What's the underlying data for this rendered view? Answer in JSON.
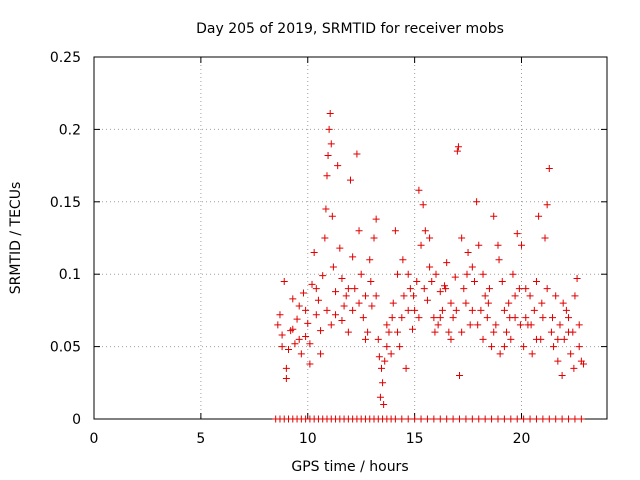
{
  "chart_data": {
    "type": "scatter",
    "title": "Day 205 of 2019, SRMTID for receiver mobs",
    "xlabel": "GPS time / hours",
    "ylabel": "SRMTID / TECUs",
    "xlim": [
      0,
      24
    ],
    "ylim": [
      0,
      0.25
    ],
    "xticks": [
      0,
      5,
      10,
      15,
      20
    ],
    "xtick_labels": [
      "0",
      "5",
      "10",
      "15",
      "20"
    ],
    "yticks": [
      0,
      0.05,
      0.1,
      0.15,
      0.2,
      0.25
    ],
    "ytick_labels": [
      "0",
      "0.05",
      "0.1",
      "0.15",
      "0.2",
      "0.25"
    ],
    "grid": true,
    "marker": "+",
    "color": "#e00000",
    "series": [
      {
        "name": "SRMTID",
        "points": [
          [
            8.6,
            0.065
          ],
          [
            8.7,
            0.072
          ],
          [
            8.8,
            0.058
          ],
          [
            8.9,
            0.095
          ],
          [
            9.0,
            0.028
          ],
          [
            9.1,
            0.048
          ],
          [
            9.2,
            0.061
          ],
          [
            9.3,
            0.083
          ],
          [
            9.4,
            0.052
          ],
          [
            9.5,
            0.069
          ],
          [
            9.6,
            0.078
          ],
          [
            9.7,
            0.045
          ],
          [
            9.8,
            0.087
          ],
          [
            9.9,
            0.057
          ],
          [
            10.0,
            0.066
          ],
          [
            10.1,
            0.038
          ],
          [
            10.2,
            0.093
          ],
          [
            10.3,
            0.115
          ],
          [
            10.4,
            0.072
          ],
          [
            10.5,
            0.082
          ],
          [
            10.6,
            0.061
          ],
          [
            10.7,
            0.099
          ],
          [
            10.8,
            0.125
          ],
          [
            10.85,
            0.145
          ],
          [
            10.9,
            0.168
          ],
          [
            10.95,
            0.182
          ],
          [
            11.0,
            0.2
          ],
          [
            11.05,
            0.211
          ],
          [
            11.1,
            0.19
          ],
          [
            11.15,
            0.14
          ],
          [
            11.2,
            0.105
          ],
          [
            11.3,
            0.088
          ],
          [
            11.4,
            0.175
          ],
          [
            11.5,
            0.118
          ],
          [
            11.6,
            0.097
          ],
          [
            11.7,
            0.078
          ],
          [
            11.8,
            0.085
          ],
          [
            11.9,
            0.06
          ],
          [
            12.0,
            0.165
          ],
          [
            12.1,
            0.112
          ],
          [
            12.2,
            0.09
          ],
          [
            12.3,
            0.183
          ],
          [
            12.4,
            0.13
          ],
          [
            12.5,
            0.1
          ],
          [
            12.6,
            0.07
          ],
          [
            12.7,
            0.085
          ],
          [
            12.8,
            0.06
          ],
          [
            12.9,
            0.11
          ],
          [
            13.0,
            0.078
          ],
          [
            13.1,
            0.125
          ],
          [
            13.2,
            0.138
          ],
          [
            13.3,
            0.055
          ],
          [
            13.35,
            0.043
          ],
          [
            13.4,
            0.015
          ],
          [
            13.5,
            0.025
          ],
          [
            13.55,
            0.01
          ],
          [
            13.6,
            0.04
          ],
          [
            13.7,
            0.065
          ],
          [
            13.8,
            0.06
          ],
          [
            13.9,
            0.045
          ],
          [
            14.0,
            0.08
          ],
          [
            14.1,
            0.13
          ],
          [
            14.2,
            0.1
          ],
          [
            14.3,
            0.05
          ],
          [
            14.4,
            0.07
          ],
          [
            14.5,
            0.085
          ],
          [
            14.6,
            0.035
          ],
          [
            14.7,
            0.1
          ],
          [
            14.8,
            0.09
          ],
          [
            14.9,
            0.062
          ],
          [
            15.0,
            0.075
          ],
          [
            15.1,
            0.095
          ],
          [
            15.2,
            0.158
          ],
          [
            15.3,
            0.12
          ],
          [
            15.4,
            0.148
          ],
          [
            15.5,
            0.13
          ],
          [
            15.6,
            0.082
          ],
          [
            15.7,
            0.125
          ],
          [
            15.8,
            0.095
          ],
          [
            15.9,
            0.07
          ],
          [
            16.0,
            0.1
          ],
          [
            16.1,
            0.065
          ],
          [
            16.2,
            0.088
          ],
          [
            16.3,
            0.075
          ],
          [
            16.4,
            0.092
          ],
          [
            16.5,
            0.108
          ],
          [
            16.6,
            0.06
          ],
          [
            16.7,
            0.08
          ],
          [
            16.8,
            0.07
          ],
          [
            16.9,
            0.098
          ],
          [
            17.0,
            0.185
          ],
          [
            17.05,
            0.188
          ],
          [
            17.1,
            0.03
          ],
          [
            17.2,
            0.125
          ],
          [
            17.3,
            0.09
          ],
          [
            17.4,
            0.08
          ],
          [
            17.5,
            0.115
          ],
          [
            17.6,
            0.065
          ],
          [
            17.7,
            0.105
          ],
          [
            17.8,
            0.095
          ],
          [
            17.9,
            0.15
          ],
          [
            18.0,
            0.12
          ],
          [
            18.1,
            0.075
          ],
          [
            18.2,
            0.055
          ],
          [
            18.3,
            0.085
          ],
          [
            18.4,
            0.07
          ],
          [
            18.5,
            0.09
          ],
          [
            18.6,
            0.05
          ],
          [
            18.7,
            0.14
          ],
          [
            18.8,
            0.065
          ],
          [
            18.9,
            0.12
          ],
          [
            19.0,
            0.045
          ],
          [
            19.1,
            0.095
          ],
          [
            19.2,
            0.075
          ],
          [
            19.3,
            0.06
          ],
          [
            19.4,
            0.08
          ],
          [
            19.5,
            0.055
          ],
          [
            19.6,
            0.1
          ],
          [
            19.7,
            0.07
          ],
          [
            19.8,
            0.128
          ],
          [
            19.9,
            0.09
          ],
          [
            20.0,
            0.12
          ],
          [
            20.1,
            0.05
          ],
          [
            20.2,
            0.07
          ],
          [
            20.3,
            0.065
          ],
          [
            20.4,
            0.085
          ],
          [
            20.5,
            0.045
          ],
          [
            20.6,
            0.075
          ],
          [
            20.7,
            0.095
          ],
          [
            20.8,
            0.14
          ],
          [
            20.9,
            0.055
          ],
          [
            21.0,
            0.07
          ],
          [
            21.1,
            0.125
          ],
          [
            21.2,
            0.148
          ],
          [
            21.3,
            0.173
          ],
          [
            21.4,
            0.06
          ],
          [
            21.5,
            0.05
          ],
          [
            21.6,
            0.085
          ],
          [
            21.7,
            0.04
          ],
          [
            21.8,
            0.065
          ],
          [
            21.9,
            0.03
          ],
          [
            22.0,
            0.055
          ],
          [
            22.1,
            0.075
          ],
          [
            22.2,
            0.07
          ],
          [
            22.3,
            0.045
          ],
          [
            22.4,
            0.06
          ],
          [
            22.5,
            0.085
          ],
          [
            22.6,
            0.097
          ],
          [
            22.7,
            0.05
          ],
          [
            22.8,
            0.04
          ],
          [
            22.9,
            0.038
          ],
          [
            8.8,
            0.05
          ],
          [
            9.0,
            0.035
          ],
          [
            9.3,
            0.062
          ],
          [
            9.6,
            0.055
          ],
          [
            9.9,
            0.075
          ],
          [
            10.1,
            0.052
          ],
          [
            10.4,
            0.09
          ],
          [
            10.6,
            0.045
          ],
          [
            10.9,
            0.075
          ],
          [
            11.1,
            0.065
          ],
          [
            11.3,
            0.072
          ],
          [
            11.6,
            0.068
          ],
          [
            11.9,
            0.09
          ],
          [
            12.1,
            0.075
          ],
          [
            12.4,
            0.08
          ],
          [
            12.7,
            0.055
          ],
          [
            12.95,
            0.095
          ],
          [
            13.2,
            0.085
          ],
          [
            13.45,
            0.035
          ],
          [
            13.7,
            0.05
          ],
          [
            13.95,
            0.07
          ],
          [
            14.2,
            0.06
          ],
          [
            14.45,
            0.11
          ],
          [
            14.7,
            0.075
          ],
          [
            14.95,
            0.085
          ],
          [
            15.2,
            0.07
          ],
          [
            15.45,
            0.09
          ],
          [
            15.7,
            0.105
          ],
          [
            15.95,
            0.06
          ],
          [
            16.2,
            0.07
          ],
          [
            16.45,
            0.09
          ],
          [
            16.7,
            0.055
          ],
          [
            16.95,
            0.075
          ],
          [
            17.2,
            0.06
          ],
          [
            17.45,
            0.1
          ],
          [
            17.7,
            0.075
          ],
          [
            17.95,
            0.065
          ],
          [
            18.2,
            0.1
          ],
          [
            18.45,
            0.08
          ],
          [
            18.7,
            0.06
          ],
          [
            18.95,
            0.11
          ],
          [
            19.2,
            0.05
          ],
          [
            19.45,
            0.07
          ],
          [
            19.7,
            0.085
          ],
          [
            19.95,
            0.065
          ],
          [
            20.2,
            0.09
          ],
          [
            20.45,
            0.065
          ],
          [
            20.7,
            0.055
          ],
          [
            20.95,
            0.08
          ],
          [
            21.2,
            0.09
          ],
          [
            21.45,
            0.07
          ],
          [
            21.7,
            0.055
          ],
          [
            21.95,
            0.08
          ],
          [
            22.2,
            0.06
          ],
          [
            22.45,
            0.035
          ],
          [
            22.7,
            0.065
          ]
        ]
      }
    ],
    "zero_points_x": [
      8.5,
      8.7,
      8.9,
      9.1,
      9.3,
      9.5,
      9.7,
      9.9,
      10.1,
      10.3,
      10.5,
      10.7,
      10.9,
      11.1,
      11.3,
      11.5,
      11.7,
      11.9,
      12.1,
      12.3,
      12.5,
      12.7,
      12.9,
      13.1,
      13.3,
      13.5,
      13.7,
      13.9,
      14.1,
      14.4,
      14.7,
      15.0,
      15.3,
      15.6,
      15.9,
      16.2,
      16.5,
      16.8,
      17.1,
      17.4,
      17.7,
      18.0,
      18.3,
      18.6,
      18.9,
      19.2,
      19.5,
      19.8,
      20.1,
      20.4,
      20.7,
      21.0,
      21.3,
      21.6,
      21.9,
      22.2,
      22.5,
      22.8
    ]
  }
}
